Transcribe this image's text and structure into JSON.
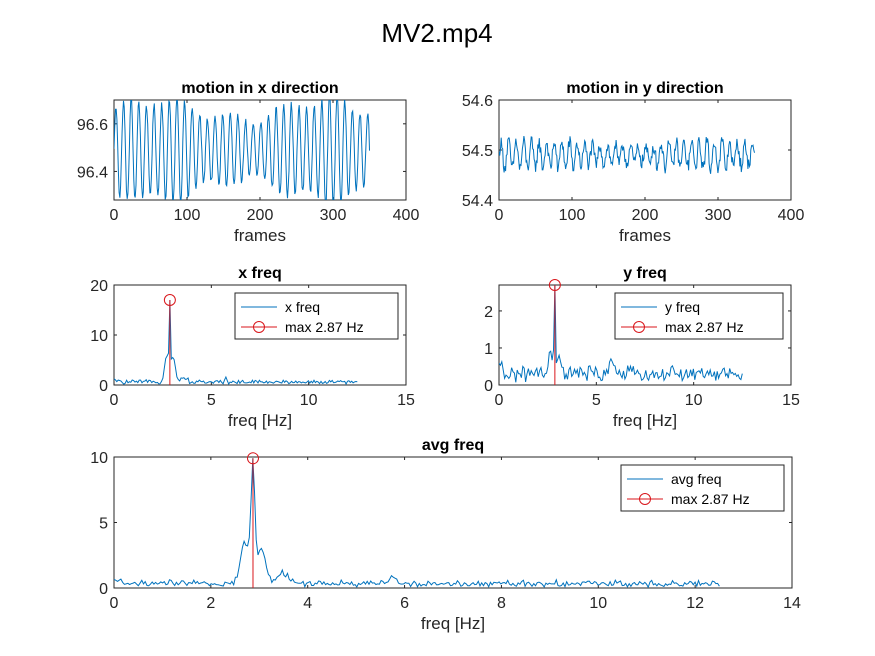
{
  "figure_title": "MV2.mp4",
  "colors": {
    "series": "#0072BD",
    "marker": "#D9161B",
    "axis": "#262626"
  },
  "chart_data": [
    {
      "id": "x-motion",
      "type": "line",
      "title": "motion in x direction",
      "xlabel": "frames",
      "ylabel": "",
      "xlim": [
        0,
        400
      ],
      "ylim": [
        96.28,
        96.7
      ],
      "xticks": [
        0,
        100,
        200,
        300,
        400
      ],
      "yticks": [
        96.4,
        96.6
      ],
      "grid": false,
      "legend": null,
      "series": [
        {
          "x_start": 0,
          "x_end": 350,
          "n": 350,
          "mean": 96.49,
          "amplitude": 0.17,
          "period_frames": 10.45,
          "noise": 0.012
        }
      ]
    },
    {
      "id": "y-motion",
      "type": "line",
      "title": "motion in y direction",
      "xlabel": "frames",
      "ylabel": "",
      "xlim": [
        0,
        400
      ],
      "ylim": [
        54.4,
        54.6
      ],
      "xticks": [
        0,
        100,
        200,
        300,
        400
      ],
      "yticks": [
        54.4,
        54.5,
        54.6
      ],
      "grid": false,
      "legend": null,
      "series": [
        {
          "x_start": 0,
          "x_end": 350,
          "n": 350,
          "mean": 54.49,
          "amplitude": 0.022,
          "period_frames": 10.45,
          "noise": 0.014
        }
      ]
    },
    {
      "id": "x-freq",
      "type": "line",
      "title": "x freq",
      "xlabel": "freq [Hz]",
      "ylabel": "",
      "xlim": [
        0,
        15
      ],
      "ylim": [
        0,
        20
      ],
      "xticks": [
        0,
        5,
        10,
        15
      ],
      "yticks": [
        0,
        10,
        20
      ],
      "grid": false,
      "legend": {
        "position": "top-right",
        "entries": [
          "x freq",
          "max 2.87 Hz"
        ]
      },
      "peak": {
        "x": 2.87,
        "y": 17
      },
      "series": [
        {
          "name": "x freq",
          "x_start": 0,
          "x_end": 12.5,
          "n": 175,
          "base": 0.6,
          "noise": 0.45,
          "bumps": [
            [
              2.87,
              16.4,
              0.05
            ],
            [
              2.7,
              5.5,
              0.14
            ],
            [
              3.05,
              5.0,
              0.14
            ],
            [
              3.6,
              1.0,
              0.2
            ],
            [
              5.75,
              0.9,
              0.08
            ]
          ]
        }
      ],
      "marker": {
        "name": "max 2.87 Hz",
        "x": 2.87,
        "y": 17
      }
    },
    {
      "id": "y-freq",
      "type": "line",
      "title": "y freq",
      "xlabel": "freq [Hz]",
      "ylabel": "",
      "xlim": [
        0,
        15
      ],
      "ylim": [
        0,
        2.7
      ],
      "xticks": [
        0,
        5,
        10,
        15
      ],
      "yticks": [
        0,
        1,
        2
      ],
      "grid": false,
      "legend": {
        "position": "top-right",
        "entries": [
          "y freq",
          "max 2.87 Hz"
        ]
      },
      "peak": {
        "x": 2.87,
        "y": 2.7
      },
      "series": [
        {
          "name": "y freq",
          "x_start": 0,
          "x_end": 12.5,
          "n": 175,
          "base": 0.3,
          "noise": 0.22,
          "bumps": [
            [
              2.87,
              2.35,
              0.05
            ],
            [
              2.65,
              0.6,
              0.12
            ],
            [
              3.1,
              0.5,
              0.12
            ],
            [
              5.75,
              0.4,
              0.08
            ],
            [
              5.9,
              0.25,
              0.15
            ]
          ]
        }
      ],
      "marker": {
        "name": "max 2.87 Hz",
        "x": 2.87,
        "y": 2.7
      }
    },
    {
      "id": "avg-freq",
      "type": "line",
      "title": "avg freq",
      "xlabel": "freq [Hz]",
      "ylabel": "",
      "xlim": [
        0,
        14
      ],
      "ylim": [
        0,
        10
      ],
      "xticks": [
        0,
        2,
        4,
        6,
        8,
        10,
        12,
        14
      ],
      "yticks": [
        0,
        5,
        10
      ],
      "grid": false,
      "legend": {
        "position": "top-right",
        "entries": [
          "avg freq",
          "max 2.87 Hz"
        ]
      },
      "peak": {
        "x": 2.87,
        "y": 9.9
      },
      "series": [
        {
          "name": "avg freq",
          "x_start": 0,
          "x_end": 12.5,
          "n": 350,
          "base": 0.35,
          "noise": 0.28,
          "bumps": [
            [
              2.87,
              8.2,
              0.06
            ],
            [
              2.7,
              3.2,
              0.12
            ],
            [
              3.05,
              2.6,
              0.12
            ],
            [
              3.5,
              0.8,
              0.18
            ],
            [
              5.75,
              0.8,
              0.06
            ]
          ]
        }
      ],
      "marker": {
        "name": "max 2.87 Hz",
        "x": 2.87,
        "y": 9.9
      }
    }
  ]
}
